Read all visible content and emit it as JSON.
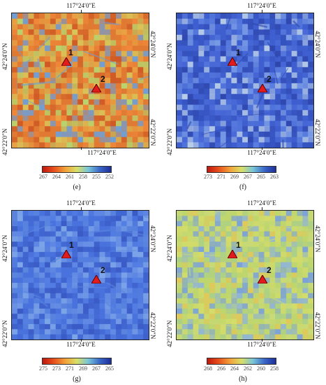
{
  "axes": {
    "lon_label": "117°24′0″E",
    "lat_label_top": "42°24′0″N",
    "lat_label_bottom": "42°22′0″N"
  },
  "sites": [
    {
      "id": "1",
      "label": "1"
    },
    {
      "id": "2",
      "label": "2"
    }
  ],
  "panels": [
    {
      "id": "e",
      "caption": "(e)",
      "colorbar_labels": [
        "267",
        "264",
        "261",
        "258",
        "255",
        "252"
      ],
      "colormap": [
        "#c0170f",
        "#e8501c",
        "#f2a23a",
        "#d9df66",
        "#79c5d8",
        "#3a68c8",
        "#1e2e99"
      ],
      "dominant_colors": [
        "#e07a33",
        "#e9a444",
        "#d9c65a",
        "#f0883a",
        "#cf5a25",
        "#b8d46e",
        "#6f9fd6"
      ]
    },
    {
      "id": "f",
      "caption": "(f)",
      "colorbar_labels": [
        "273",
        "271",
        "269",
        "267",
        "265",
        "263"
      ],
      "colormap": [
        "#c0170f",
        "#e8501c",
        "#f2a23a",
        "#d9df66",
        "#79c5d8",
        "#3a68c8",
        "#1e2e99"
      ],
      "dominant_colors": [
        "#3f5fcf",
        "#4a6ad8",
        "#5a7ee0",
        "#3553bf",
        "#7a9ce6",
        "#b8cde8",
        "#2f47ae"
      ]
    },
    {
      "id": "g",
      "caption": "(g)",
      "colorbar_labels": [
        "275",
        "273",
        "271",
        "269",
        "267",
        "265"
      ],
      "colormap": [
        "#c0170f",
        "#e8501c",
        "#f2a23a",
        "#d9df66",
        "#79c5d8",
        "#3a68c8",
        "#1e2e99"
      ],
      "dominant_colors": [
        "#4a72dd",
        "#5580e3",
        "#3f64cf",
        "#6a92e6",
        "#3a5ac4",
        "#7ea6e8",
        "#5b86de"
      ]
    },
    {
      "id": "h",
      "caption": "(h)",
      "colorbar_labels": [
        "268",
        "266",
        "264",
        "262",
        "260",
        "258"
      ],
      "colormap": [
        "#c0170f",
        "#e8501c",
        "#f2a23a",
        "#d9df66",
        "#79c5d8",
        "#3a68c8",
        "#1e2e99"
      ],
      "dominant_colors": [
        "#bfd66e",
        "#d4dc6a",
        "#a9cf8a",
        "#8fb3d9",
        "#e0c85a",
        "#7aa0dc",
        "#c9d978"
      ]
    }
  ]
}
